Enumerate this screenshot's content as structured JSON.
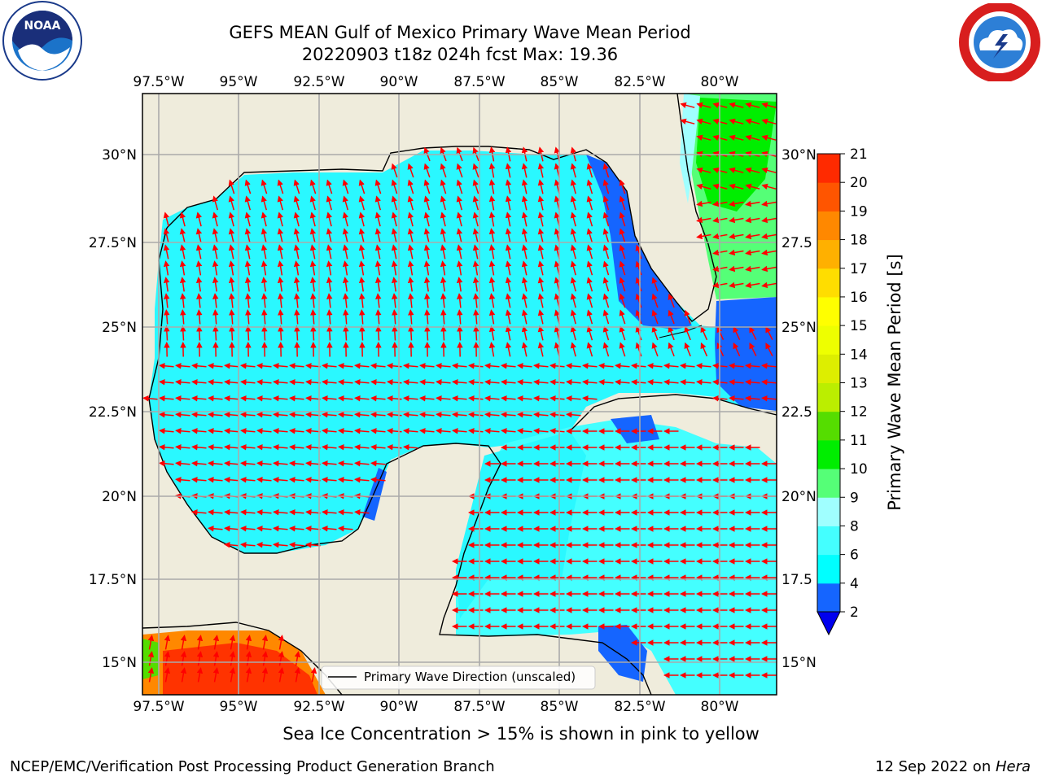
{
  "header": {
    "title_line1": "GEFS MEAN Gulf of Mexico Primary Wave Mean Period",
    "title_line2": "20220903 t18z 024h fcst   Max: 19.36"
  },
  "logos": {
    "left": "NOAA",
    "right": "NATIONAL WEATHER SERVICE"
  },
  "map": {
    "lon_labels": [
      "97.5°W",
      "95°W",
      "92.5°W",
      "90°W",
      "87.5°W",
      "85°W",
      "82.5°W",
      "80°W"
    ],
    "lat_labels_left": [
      "30°N",
      "27.5°N",
      "25°N",
      "22.5°N",
      "20°N",
      "17.5°N",
      "15°N"
    ],
    "lat_labels_right": [
      "30°N",
      "27.5",
      "25°N",
      "22.5",
      "20°N",
      "17.5",
      "15°N"
    ],
    "legend_label": "Primary Wave Direction (unscaled)"
  },
  "colorbar": {
    "label": "Primary Wave Mean Period [s]",
    "ticks": [
      "2",
      "4",
      "6",
      "8",
      "9",
      "10",
      "11",
      "12",
      "13",
      "14",
      "15",
      "16",
      "17",
      "18",
      "19",
      "20",
      "21"
    ],
    "colors": [
      "#1565ff",
      "#00ffff",
      "#44ffff",
      "#a0ffff",
      "#55ff77",
      "#00ee00",
      "#55dd00",
      "#bbee00",
      "#ddee00",
      "#eeff00",
      "#ffff00",
      "#ffdd00",
      "#ffb000",
      "#ff8800",
      "#ff5500",
      "#ff2a00"
    ],
    "under_color": "#0000ee"
  },
  "caption": "Sea Ice Concentration > 15% is shown in pink to yellow",
  "footer": {
    "left": "NCEP/EMC/Verification Post Processing Product Generation Branch",
    "right_date": "12 Sep 2022 on ",
    "right_host": "Hera"
  }
}
